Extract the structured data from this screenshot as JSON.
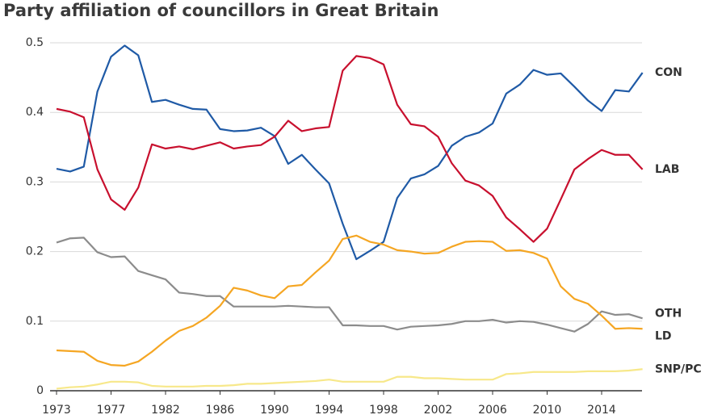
{
  "chart_data": {
    "type": "line",
    "title": "Party affiliation of councillors in Great Britain",
    "categories": [
      "1973",
      null,
      null,
      null,
      "1977",
      null,
      null,
      null,
      "1982",
      null,
      null,
      null,
      "1986",
      null,
      null,
      null,
      "1990",
      null,
      null,
      null,
      "1994",
      null,
      null,
      null,
      "1998",
      null,
      null,
      null,
      "2002",
      null,
      null,
      null,
      "2006",
      null,
      null,
      null,
      "2010",
      null,
      null,
      null,
      "2014",
      null,
      null,
      null
    ],
    "ylim": [
      0,
      0.5
    ],
    "yticks": [
      0,
      0.1,
      0.2,
      0.3,
      0.4,
      0.5
    ],
    "grid": true,
    "series": [
      {
        "name": "CON",
        "color": "#1f5aa6",
        "values": [
          0.319,
          0.315,
          0.322,
          0.43,
          0.48,
          0.496,
          0.482,
          0.415,
          0.418,
          0.411,
          0.405,
          0.404,
          0.376,
          0.373,
          0.374,
          0.378,
          0.366,
          0.326,
          0.339,
          0.318,
          0.298,
          0.24,
          0.189,
          0.201,
          0.214,
          0.277,
          0.305,
          0.311,
          0.323,
          0.352,
          0.365,
          0.371,
          0.384,
          0.427,
          0.44,
          0.461,
          0.454,
          0.456,
          0.437,
          0.417,
          0.402,
          0.432,
          0.43,
          0.457
        ]
      },
      {
        "name": "LAB",
        "color": "#c8102e",
        "values": [
          0.405,
          0.401,
          0.393,
          0.318,
          0.275,
          0.26,
          0.292,
          0.354,
          0.348,
          0.351,
          0.347,
          0.352,
          0.357,
          0.348,
          0.351,
          0.353,
          0.365,
          0.388,
          0.373,
          0.377,
          0.379,
          0.46,
          0.481,
          0.478,
          0.469,
          0.411,
          0.383,
          0.38,
          0.365,
          0.327,
          0.302,
          0.295,
          0.28,
          0.249,
          0.232,
          0.214,
          0.233,
          0.275,
          0.318,
          0.333,
          0.346,
          0.339,
          0.339,
          0.318
        ]
      },
      {
        "name": "OTH",
        "color": "#8c8c8c",
        "values": [
          0.213,
          0.219,
          0.22,
          0.199,
          0.192,
          0.193,
          0.172,
          0.166,
          0.16,
          0.141,
          0.139,
          0.136,
          0.136,
          0.121,
          0.121,
          0.121,
          0.121,
          0.122,
          0.121,
          0.12,
          0.12,
          0.094,
          0.094,
          0.093,
          0.093,
          0.088,
          0.092,
          0.093,
          0.094,
          0.096,
          0.1,
          0.1,
          0.102,
          0.098,
          0.1,
          0.099,
          0.095,
          0.09,
          0.085,
          0.096,
          0.114,
          0.109,
          0.11,
          0.104
        ]
      },
      {
        "name": "LD",
        "color": "#f5a623",
        "values": [
          0.058,
          0.057,
          0.056,
          0.043,
          0.037,
          0.036,
          0.042,
          0.056,
          0.072,
          0.086,
          0.093,
          0.105,
          0.122,
          0.148,
          0.144,
          0.137,
          0.133,
          0.15,
          0.152,
          0.17,
          0.187,
          0.218,
          0.223,
          0.214,
          0.21,
          0.202,
          0.2,
          0.197,
          0.198,
          0.207,
          0.214,
          0.215,
          0.214,
          0.201,
          0.202,
          0.198,
          0.19,
          0.15,
          0.132,
          0.125,
          0.108,
          0.089,
          0.09,
          0.089
        ]
      },
      {
        "name": "SNP/PC",
        "color": "#f7e88a",
        "values": [
          0.003,
          0.005,
          0.006,
          0.009,
          0.013,
          0.013,
          0.012,
          0.007,
          0.006,
          0.006,
          0.006,
          0.007,
          0.007,
          0.008,
          0.01,
          0.01,
          0.011,
          0.012,
          0.013,
          0.014,
          0.016,
          0.013,
          0.013,
          0.013,
          0.013,
          0.02,
          0.02,
          0.018,
          0.018,
          0.017,
          0.016,
          0.016,
          0.016,
          0.024,
          0.025,
          0.027,
          0.027,
          0.027,
          0.027,
          0.028,
          0.028,
          0.028,
          0.029,
          0.031
        ]
      }
    ]
  }
}
